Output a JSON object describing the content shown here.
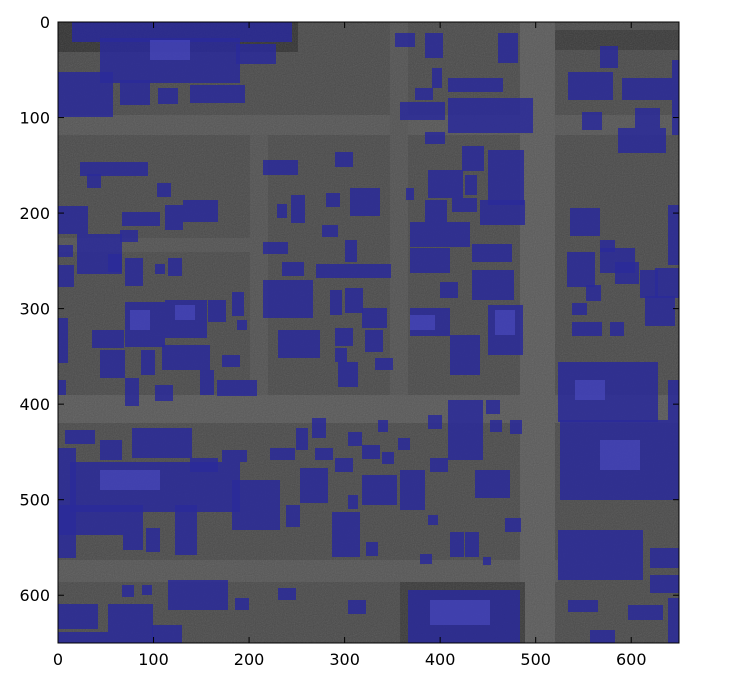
{
  "figure": {
    "background": "#ffffff",
    "axes_color": "#000000",
    "image": {
      "description_colors": {
        "ground": "#4a4a4a",
        "road": "#5a5a5a",
        "shadow": "#2e2e2e",
        "building_overlay": "#2a2a9a",
        "building_overlay_light": "#4a4ac0"
      }
    }
  },
  "axes": {
    "x": {
      "range": [
        0,
        650
      ],
      "ticks": [
        0,
        100,
        200,
        300,
        400,
        500,
        600
      ],
      "tick_labels": [
        "0",
        "100",
        "200",
        "300",
        "400",
        "500",
        "600"
      ]
    },
    "y": {
      "range": [
        0,
        650
      ],
      "inverted": true,
      "ticks": [
        0,
        100,
        200,
        300,
        400,
        500,
        600
      ],
      "tick_labels": [
        "0",
        "100",
        "200",
        "300",
        "400",
        "500",
        "600"
      ]
    }
  }
}
